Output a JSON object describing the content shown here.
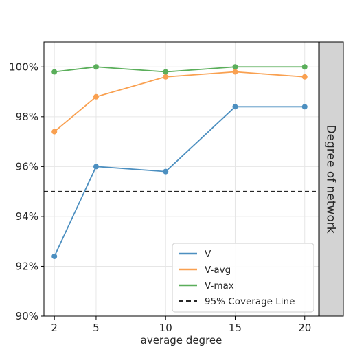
{
  "chart_data": {
    "type": "line",
    "title": "",
    "xlabel": "average degree",
    "ylabel": "",
    "facet_label": "Degree  of  network",
    "x": [
      2,
      5,
      10,
      15,
      20
    ],
    "x_ticks": [
      "2",
      "5",
      "10",
      "15",
      "20"
    ],
    "xlim": [
      1.25,
      21.0
    ],
    "ylim": [
      90,
      101
    ],
    "y_ticks": [
      90,
      92,
      94,
      96,
      98,
      100
    ],
    "y_tick_labels": [
      "90%",
      "92%",
      "94%",
      "96%",
      "98%",
      "100%"
    ],
    "grid": true,
    "legend_position": "lower-right",
    "series": [
      {
        "name": "V",
        "color": "#4c8fc0",
        "values": [
          92.4,
          96.0,
          95.8,
          98.4,
          98.4
        ]
      },
      {
        "name": "V-avg",
        "color": "#f9a050",
        "values": [
          97.4,
          98.8,
          99.6,
          99.8,
          99.6
        ]
      },
      {
        "name": "V-max",
        "color": "#5aae5a",
        "values": [
          99.8,
          100.0,
          99.8,
          100.0,
          100.0
        ]
      }
    ],
    "reference_line": {
      "name": "95% Coverage Line",
      "y": 95,
      "color": "#262626",
      "style": "dashed"
    }
  }
}
